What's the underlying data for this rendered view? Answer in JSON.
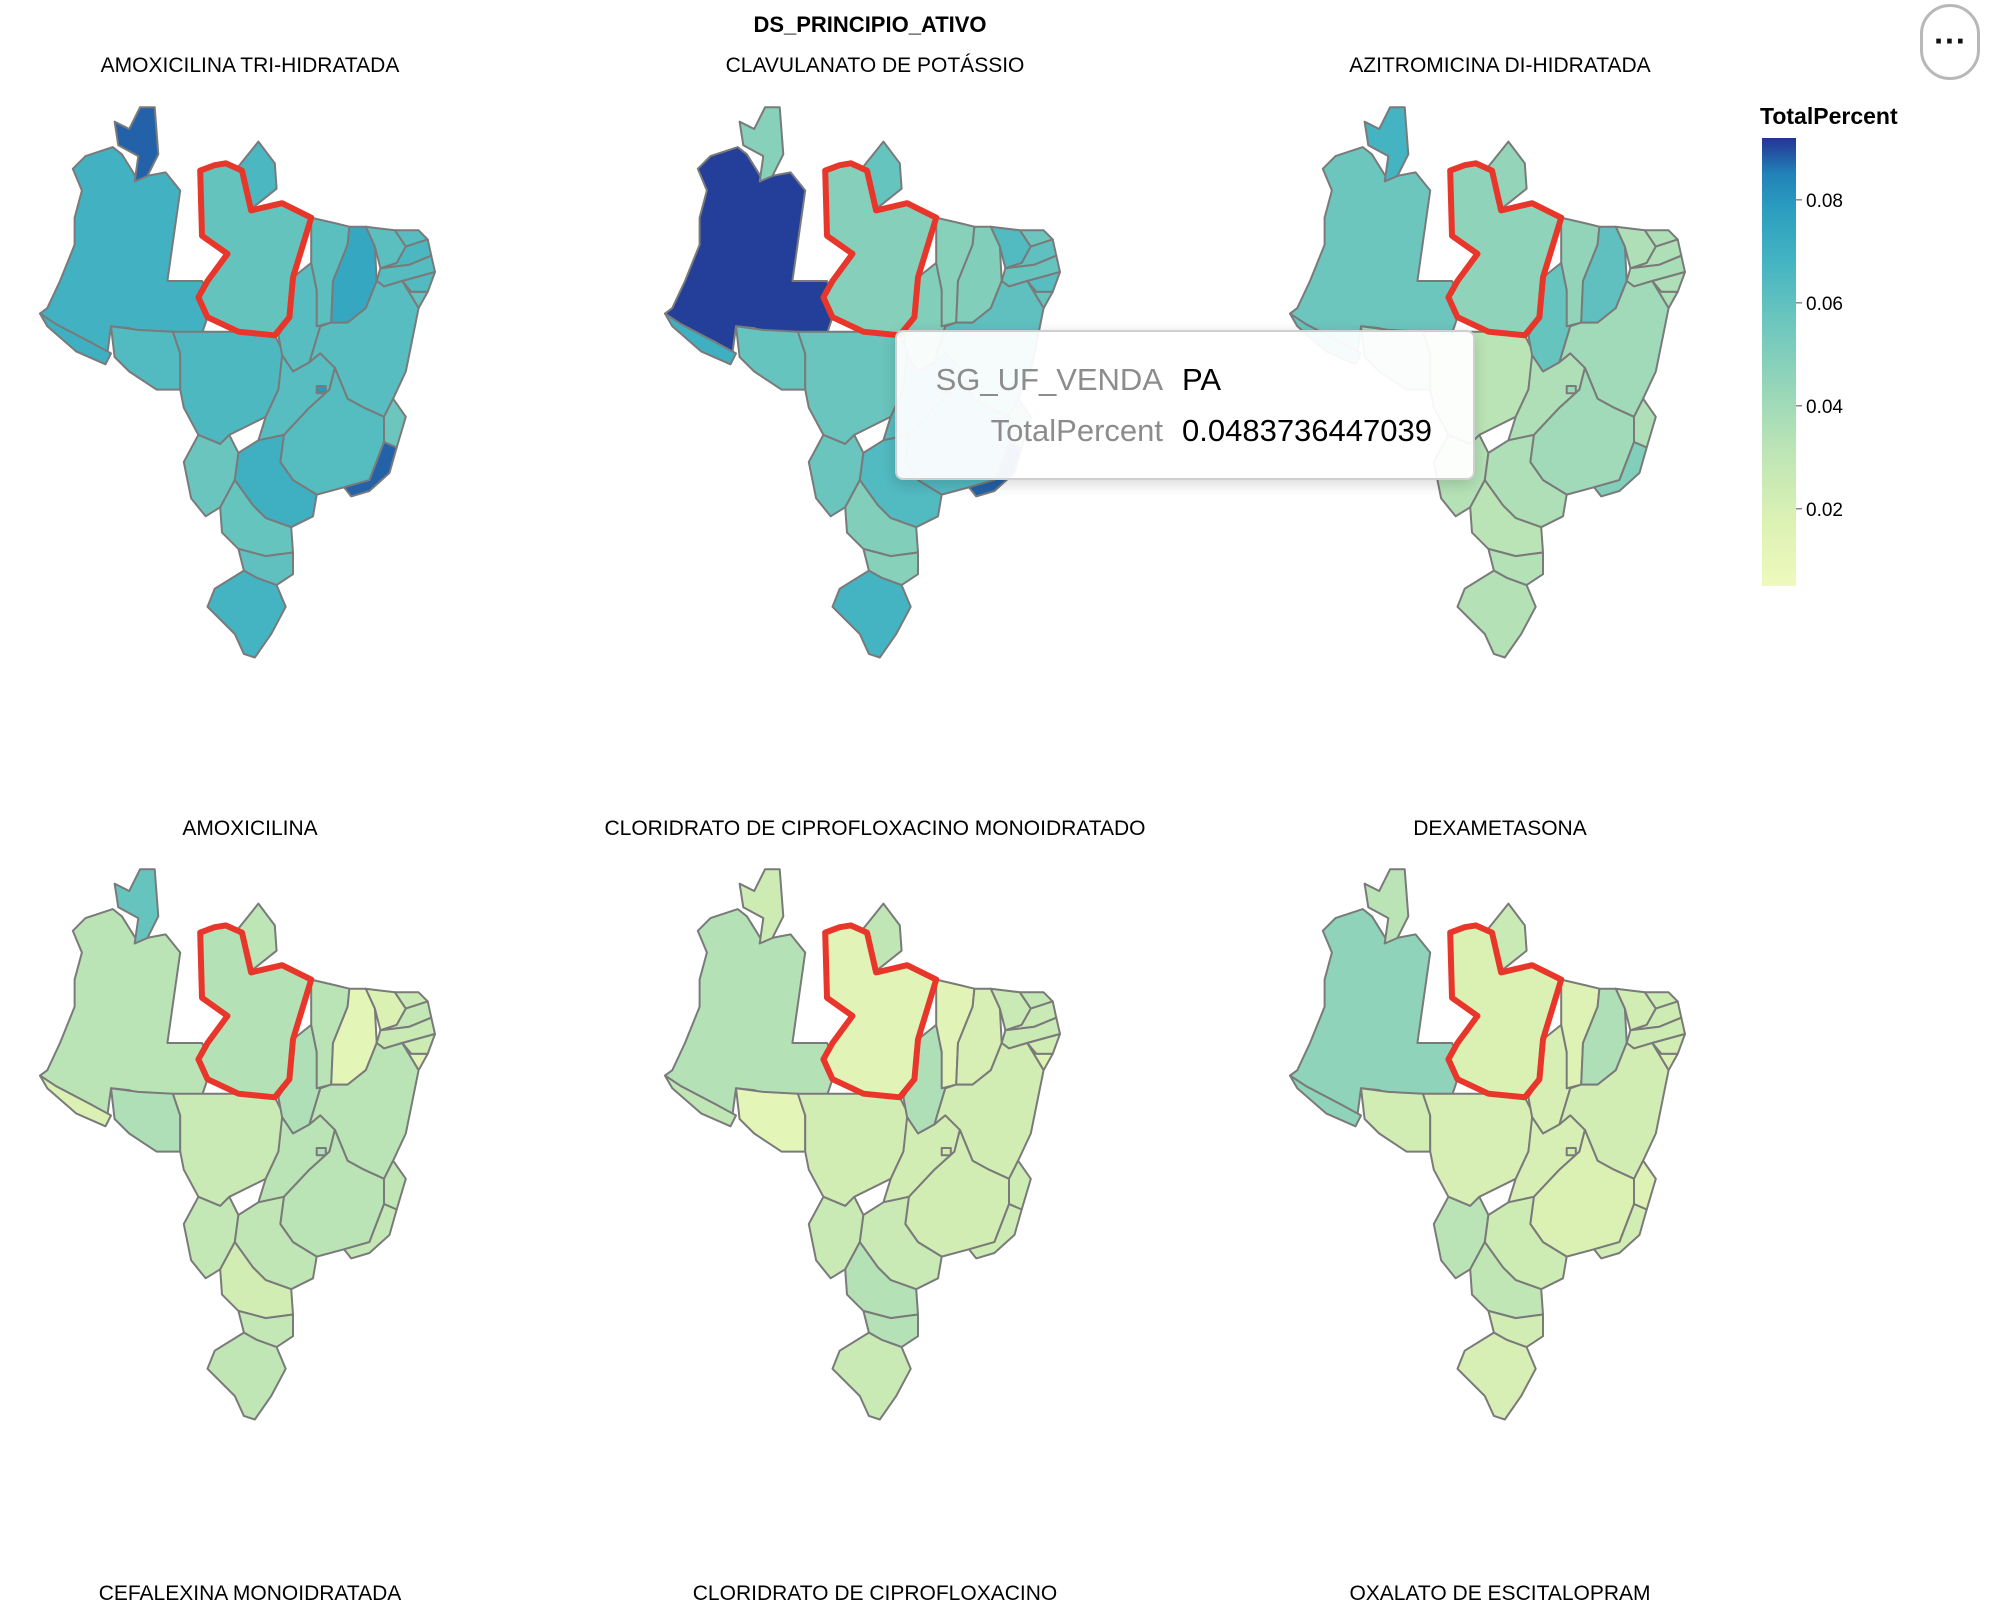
{
  "menu": {
    "label": "···",
    "icon": "ellipsis-icon"
  },
  "chart_data": {
    "type": "choropleth",
    "facet_field": "DS_PRINCIPIO_ATIVO",
    "color_field": "TotalPercent",
    "color_scheme": "yellowgreenblue",
    "color_domain": [
      0.005,
      0.092
    ],
    "legend": {
      "title": "TotalPercent",
      "ticks": [
        0.08,
        0.06,
        0.04,
        0.02
      ],
      "placement": "top-right"
    },
    "highlighted_state": "PA",
    "tooltip": {
      "fields": [
        {
          "key": "SG_UF_VENDA",
          "value": "PA"
        },
        {
          "key": "TotalPercent",
          "value": "0.0483736447039"
        }
      ]
    },
    "panels": [
      {
        "title": "AMOXICILINA TRI-HIDRATADA",
        "values": {
          "AM": 0.069,
          "RR": 0.088,
          "AP": 0.066,
          "PA": 0.0584,
          "AC": 0.07,
          "RO": 0.064,
          "MT": 0.065,
          "TO": 0.062,
          "MA": 0.061,
          "PI": 0.074,
          "CE": 0.061,
          "RN": 0.062,
          "PB": 0.066,
          "PE": 0.063,
          "AL": 0.064,
          "SE": 0.059,
          "BA": 0.062,
          "MS": 0.057,
          "GO": 0.062,
          "DF": 0.08,
          "MG": 0.063,
          "ES": 0.056,
          "RJ": 0.088,
          "SP": 0.07,
          "PR": 0.058,
          "SC": 0.06,
          "RS": 0.068
        }
      },
      {
        "title": "CLAVULANATO DE POTÁSSIO",
        "values": {
          "AM": 0.091,
          "RR": 0.048,
          "AP": 0.058,
          "PA": 0.0484,
          "AC": 0.07,
          "RO": 0.058,
          "MT": 0.057,
          "TO": 0.05,
          "MA": 0.048,
          "PI": 0.05,
          "CE": 0.064,
          "RN": 0.056,
          "PB": 0.06,
          "PE": 0.058,
          "AL": 0.062,
          "SE": 0.058,
          "BA": 0.06,
          "MS": 0.057,
          "GO": 0.062,
          "DF": 0.07,
          "MG": 0.064,
          "ES": 0.055,
          "RJ": 0.088,
          "SP": 0.064,
          "PR": 0.05,
          "SC": 0.048,
          "RS": 0.068
        }
      },
      {
        "title": "AZITROMICINA DI-HIDRATADA",
        "values": {
          "AM": 0.056,
          "RR": 0.068,
          "AP": 0.044,
          "PA": 0.046,
          "AC": 0.058,
          "RO": 0.04,
          "MT": 0.032,
          "TO": 0.058,
          "MA": 0.045,
          "PI": 0.06,
          "CE": 0.036,
          "RN": 0.036,
          "PB": 0.036,
          "PE": 0.038,
          "AL": 0.036,
          "SE": 0.036,
          "BA": 0.04,
          "MS": 0.034,
          "GO": 0.036,
          "DF": 0.042,
          "MG": 0.04,
          "ES": 0.036,
          "RJ": 0.05,
          "SP": 0.036,
          "PR": 0.032,
          "SC": 0.034,
          "RS": 0.034
        }
      },
      {
        "title": "AMOXICILINA",
        "values": {
          "AM": 0.032,
          "RR": 0.058,
          "AP": 0.031,
          "PA": 0.034,
          "AC": 0.018,
          "RO": 0.036,
          "MT": 0.026,
          "TO": 0.036,
          "MA": 0.032,
          "PI": 0.012,
          "CE": 0.018,
          "RN": 0.026,
          "PB": 0.028,
          "PE": 0.026,
          "AL": 0.024,
          "SE": 0.014,
          "BA": 0.032,
          "MS": 0.028,
          "GO": 0.032,
          "DF": 0.036,
          "MG": 0.032,
          "ES": 0.03,
          "RJ": 0.028,
          "SP": 0.03,
          "PR": 0.022,
          "SC": 0.028,
          "RS": 0.03
        }
      },
      {
        "title": "CLORIDRATO DE CIPROFLOXACINO MONOIDRATADO",
        "values": {
          "AM": 0.034,
          "RR": 0.024,
          "AP": 0.03,
          "PA": 0.014,
          "AC": 0.03,
          "RO": 0.012,
          "MT": 0.022,
          "TO": 0.036,
          "MA": 0.014,
          "PI": 0.02,
          "CE": 0.026,
          "RN": 0.028,
          "PB": 0.026,
          "PE": 0.026,
          "AL": 0.022,
          "SE": 0.016,
          "BA": 0.022,
          "MS": 0.026,
          "GO": 0.022,
          "DF": 0.022,
          "MG": 0.022,
          "ES": 0.024,
          "RJ": 0.024,
          "SP": 0.026,
          "PR": 0.034,
          "SC": 0.034,
          "RS": 0.026
        }
      },
      {
        "title": "DEXAMETASONA",
        "values": {
          "AM": 0.046,
          "RR": 0.032,
          "AP": 0.026,
          "PA": 0.018,
          "AC": 0.046,
          "RO": 0.022,
          "MT": 0.02,
          "TO": 0.02,
          "MA": 0.016,
          "PI": 0.036,
          "CE": 0.022,
          "RN": 0.024,
          "PB": 0.024,
          "PE": 0.024,
          "AL": 0.022,
          "SE": 0.018,
          "BA": 0.022,
          "MS": 0.032,
          "GO": 0.02,
          "DF": 0.022,
          "MG": 0.018,
          "ES": 0.016,
          "RJ": 0.022,
          "SP": 0.024,
          "PR": 0.03,
          "SC": 0.022,
          "RS": 0.02
        }
      },
      {
        "title": "CEFALEXINA MONOIDRATADA",
        "values": {}
      },
      {
        "title": "CLORIDRATO DE CIPROFLOXACINO",
        "values": {}
      },
      {
        "title": "OXALATO DE ESCITALOPRAM",
        "values": {}
      }
    ]
  }
}
